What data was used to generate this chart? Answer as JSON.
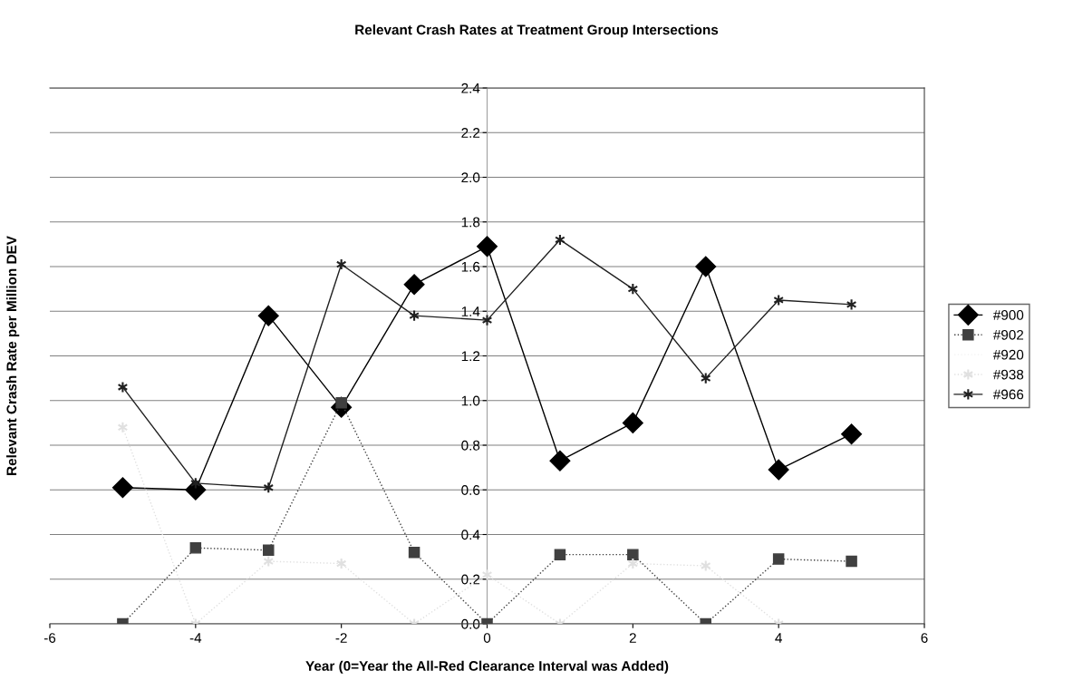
{
  "chart_data": {
    "type": "line",
    "title": "Relevant Crash Rates at Treatment Group Intersections",
    "xlabel": "Year (0=Year the All-Red Clearance Interval was Added)",
    "ylabel": "Relevant Crash Rate per Million DEV",
    "x": [
      -5,
      -4,
      -3,
      -2,
      -1,
      0,
      1,
      2,
      3,
      4,
      5
    ],
    "series": [
      {
        "name": "#900",
        "color": "#000000",
        "marker": "diamond",
        "line_style": "solid",
        "values": [
          0.61,
          0.6,
          1.38,
          0.97,
          1.52,
          1.69,
          0.73,
          0.9,
          1.6,
          0.69,
          0.85
        ]
      },
      {
        "name": "#902",
        "color": "#404040",
        "marker": "square",
        "line_style": "dotted",
        "values": [
          0.0,
          0.34,
          0.33,
          0.99,
          0.32,
          0.0,
          0.31,
          0.31,
          0.0,
          0.29,
          0.28
        ]
      },
      {
        "name": "#920",
        "color": "#f2f2f2",
        "marker": "none",
        "line_style": "dotted",
        "values": [
          null,
          null,
          null,
          null,
          null,
          null,
          null,
          null,
          null,
          null,
          null
        ]
      },
      {
        "name": "#938",
        "color": "#e0e0e0",
        "marker": "cross",
        "line_style": "dotted",
        "values": [
          0.88,
          0.0,
          0.28,
          0.27,
          0.0,
          0.22,
          0.0,
          0.27,
          0.26,
          0.0,
          null
        ]
      },
      {
        "name": "#966",
        "color": "#202020",
        "marker": "cross",
        "line_style": "solid",
        "values": [
          1.06,
          0.63,
          0.61,
          1.61,
          1.38,
          1.36,
          1.72,
          1.5,
          1.1,
          1.45,
          1.43
        ]
      }
    ],
    "xlim": [
      -6,
      6
    ],
    "xticks": [
      -6,
      -4,
      -2,
      0,
      2,
      4,
      6
    ],
    "ylim": [
      0,
      2.4
    ],
    "yticks": [
      {
        "value": 0,
        "label": "0.0"
      },
      {
        "value": 0.2,
        "label": "0.2"
      },
      {
        "value": 0.4,
        "label": "0.4"
      },
      {
        "value": 0.6,
        "label": "0.6"
      },
      {
        "value": 0.8,
        "label": "0.8"
      },
      {
        "value": 1.0,
        "label": "1.0"
      },
      {
        "value": 1.2,
        "label": "1.2"
      },
      {
        "value": 1.4,
        "label": "1.4"
      },
      {
        "value": 1.6,
        "label": "1.6"
      },
      {
        "value": 1.8,
        "label": "1.8"
      },
      {
        "value": 2.0,
        "label": "2.0"
      },
      {
        "value": 2.2,
        "label": "2.2"
      },
      {
        "value": 2.4,
        "label": "2.4"
      }
    ],
    "grid": "y",
    "legend": "right"
  }
}
